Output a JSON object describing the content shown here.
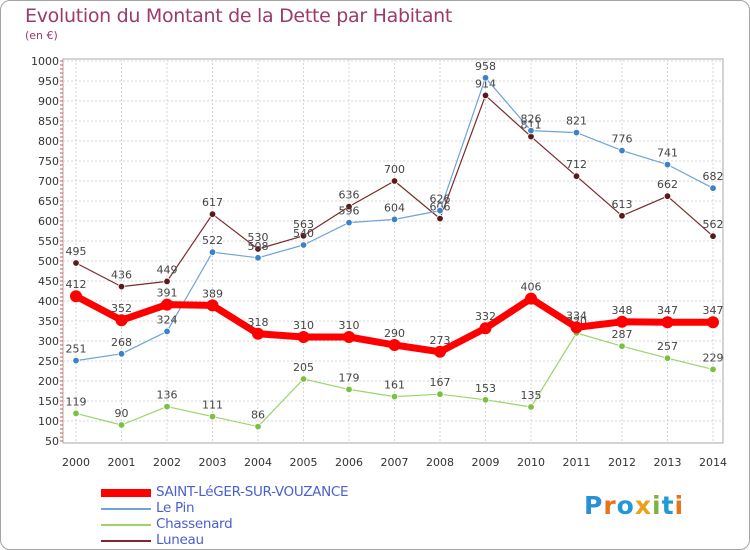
{
  "title": "Evolution du Montant de la Dette par Habitant",
  "unit": "(en €)",
  "logo": "Proxiti",
  "chart_data": {
    "type": "line",
    "x": [
      2000,
      2001,
      2002,
      2003,
      2004,
      2005,
      2006,
      2007,
      2008,
      2009,
      2010,
      2011,
      2012,
      2013,
      2014
    ],
    "ylim": [
      50,
      1000
    ],
    "yticks": [
      50,
      100,
      150,
      200,
      250,
      300,
      350,
      400,
      450,
      500,
      550,
      600,
      650,
      700,
      750,
      800,
      850,
      900,
      950,
      1000
    ],
    "grid": true,
    "legend_position": "bottom",
    "series": [
      {
        "name": "Luneau",
        "color": "#7a2a2a",
        "marker": "#5a1a1a",
        "values": [
          495,
          436,
          449,
          617,
          530,
          563,
          636,
          700,
          606,
          914,
          811,
          712,
          613,
          662,
          562
        ]
      },
      {
        "name": "Le Pin",
        "color": "#6fa3d8",
        "marker": "#3c82c8",
        "values": [
          251,
          268,
          324,
          522,
          508,
          540,
          596,
          604,
          626,
          958,
          826,
          821,
          776,
          741,
          682
        ]
      },
      {
        "name": "Chassenard",
        "color": "#9ed36a",
        "marker": "#7cc043",
        "values": [
          119,
          90,
          136,
          111,
          86,
          205,
          179,
          161,
          167,
          153,
          135,
          320,
          287,
          257,
          229
        ]
      },
      {
        "name": "SAINT-LéGER-SUR-VOUZANCE",
        "color": "#ff0000",
        "marker": "#ff0000",
        "values": [
          412,
          352,
          391,
          389,
          318,
          310,
          310,
          290,
          273,
          332,
          406,
          334,
          348,
          347,
          347
        ]
      }
    ]
  }
}
